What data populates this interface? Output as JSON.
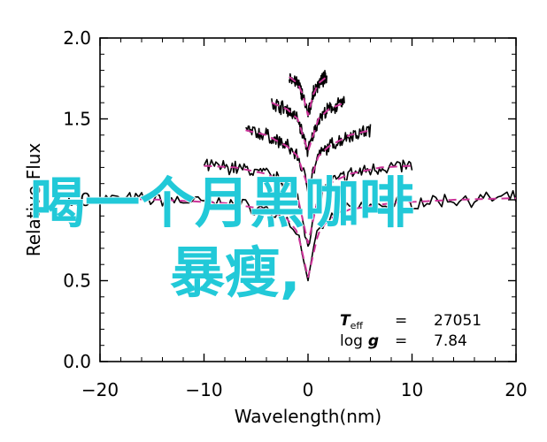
{
  "overlay": {
    "line1": "喝一个月黑咖啡",
    "line2": "暴瘦,"
  },
  "params": {
    "teff_symbol": "T",
    "teff_sub": "eff",
    "eq1": "=",
    "teff_value": "27051",
    "logg_symbol": "log",
    "logg_g": "g",
    "eq2": "=",
    "logg_value": "7.84"
  },
  "colors": {
    "model_line": "#cc3399",
    "observed_line": "#000000",
    "overlay_text": "#22c9d8"
  },
  "chart_data": {
    "type": "line",
    "xlabel": "Wavelength(nm)",
    "ylabel": "Relative Flux",
    "xlim": [
      -20,
      20
    ],
    "ylim": [
      0.0,
      2.0
    ],
    "xticks": [
      -20,
      -10,
      0,
      10,
      20
    ],
    "xtick_labels": [
      "−20",
      "−10",
      "0",
      "10",
      "20"
    ],
    "yticks": [
      0.0,
      0.5,
      1.0,
      1.5,
      2.0
    ],
    "ytick_labels": [
      "0.0",
      "0.5",
      "1.0",
      "1.5",
      "2.0"
    ],
    "grid": false,
    "series": [
      {
        "x": [
          -20,
          -14,
          -8,
          -4,
          -2,
          -1,
          0,
          1,
          2,
          4,
          8,
          14,
          20
        ],
        "y": [
          1.01,
          1.0,
          0.98,
          0.94,
          0.88,
          0.8,
          0.52,
          0.8,
          0.88,
          0.94,
          0.98,
          1.0,
          1.01
        ]
      },
      {
        "x": [
          -10,
          -7,
          -4,
          -2,
          -1,
          0,
          1,
          2,
          4,
          7,
          10
        ],
        "y": [
          1.21,
          1.2,
          1.16,
          1.1,
          1.02,
          0.73,
          1.02,
          1.1,
          1.16,
          1.2,
          1.21
        ]
      },
      {
        "x": [
          -6,
          -4,
          -2,
          -1,
          0,
          1,
          2,
          4,
          6
        ],
        "y": [
          1.43,
          1.4,
          1.33,
          1.27,
          1.08,
          1.27,
          1.33,
          1.4,
          1.43
        ]
      },
      {
        "x": [
          -3.5,
          -2,
          -1,
          0,
          1,
          2,
          3.5
        ],
        "y": [
          1.6,
          1.56,
          1.5,
          1.3,
          1.5,
          1.56,
          1.6
        ]
      },
      {
        "x": [
          -1.8,
          -1,
          -0.5,
          0,
          0.5,
          1,
          1.8
        ],
        "y": [
          1.76,
          1.72,
          1.65,
          1.52,
          1.65,
          1.72,
          1.76
        ]
      }
    ]
  }
}
